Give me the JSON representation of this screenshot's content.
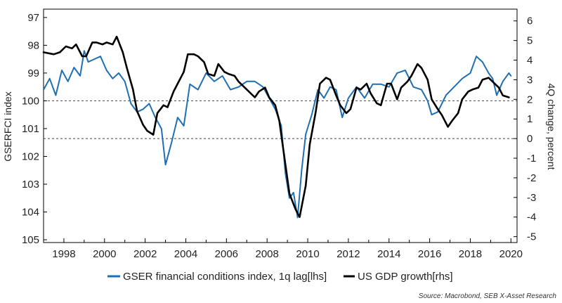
{
  "chart_data": {
    "type": "line",
    "title": "",
    "xlabel": "",
    "ylabel_left": "GSERFCI index",
    "ylabel_right": "4Q change, percent",
    "x_ticks": [
      "1998",
      "2000",
      "2002",
      "2004",
      "2006",
      "2008",
      "2010",
      "2012",
      "2014",
      "2016",
      "2018",
      "2020"
    ],
    "x_range": [
      1997.0,
      2020.3
    ],
    "left_axis": {
      "inverted": true,
      "range": [
        96.7,
        105.1
      ],
      "ticks": [
        "97",
        "98",
        "99",
        "100",
        "101",
        "102",
        "103",
        "104",
        "105"
      ]
    },
    "right_axis": {
      "range": [
        -5.3,
        6.6
      ],
      "ticks": [
        "6",
        "5",
        "4",
        "3",
        "2",
        "1",
        "0",
        "-1",
        "-2",
        "-3",
        "-4",
        "-5"
      ]
    },
    "reference_lines": [
      {
        "axis": "left",
        "value": 100.0
      },
      {
        "axis": "right",
        "value": 0.0
      }
    ],
    "series": [
      {
        "name": "GSER financial conditions index, 1q lag[lhs]",
        "axis": "left",
        "color": "#1f6fb2",
        "x": [
          1997.0,
          1997.3,
          1997.6,
          1997.9,
          1998.2,
          1998.5,
          1998.8,
          1999.0,
          1999.2,
          1999.5,
          1999.8,
          2000.1,
          2000.4,
          2000.7,
          2001.0,
          2001.3,
          2001.6,
          2001.9,
          2002.2,
          2002.5,
          2002.8,
          2003.0,
          2003.3,
          2003.6,
          2003.9,
          2004.2,
          2004.6,
          2005.0,
          2005.4,
          2005.8,
          2006.2,
          2006.6,
          2007.0,
          2007.4,
          2007.8,
          2008.1,
          2008.4,
          2008.7,
          2008.9,
          2009.1,
          2009.3,
          2009.5,
          2009.7,
          2009.9,
          2010.2,
          2010.5,
          2010.8,
          2011.1,
          2011.4,
          2011.7,
          2012.0,
          2012.4,
          2012.8,
          2013.2,
          2013.6,
          2014.0,
          2014.4,
          2014.8,
          2015.2,
          2015.6,
          2015.9,
          2016.1,
          2016.4,
          2016.8,
          2017.2,
          2017.6,
          2018.0,
          2018.3,
          2018.6,
          2018.9,
          2019.1,
          2019.3,
          2019.6,
          2019.9,
          2020.0
        ],
        "values": [
          99.6,
          99.2,
          99.8,
          98.9,
          99.3,
          98.8,
          99.1,
          98.2,
          98.6,
          98.5,
          98.4,
          98.9,
          99.2,
          99.0,
          99.3,
          100.1,
          100.4,
          100.3,
          100.1,
          100.6,
          101.0,
          102.3,
          101.5,
          100.6,
          100.9,
          99.4,
          99.6,
          99.0,
          99.3,
          99.1,
          99.6,
          99.5,
          99.3,
          99.3,
          99.5,
          99.9,
          100.3,
          100.9,
          102.6,
          103.5,
          103.3,
          104.2,
          102.5,
          101.2,
          100.5,
          99.6,
          99.9,
          99.5,
          99.6,
          100.6,
          99.9,
          99.5,
          99.9,
          99.4,
          99.4,
          99.5,
          99.0,
          98.9,
          99.5,
          99.6,
          100.0,
          100.5,
          100.4,
          99.8,
          99.5,
          99.2,
          99.0,
          98.4,
          98.6,
          99.0,
          99.2,
          99.8,
          99.3,
          99.0,
          99.1
        ]
      },
      {
        "name": "US GDP growth[rhs]",
        "axis": "right",
        "color": "#000000",
        "x": [
          1997.0,
          1997.5,
          1997.8,
          1998.1,
          1998.4,
          1998.6,
          1998.9,
          1999.1,
          1999.4,
          1999.6,
          1999.9,
          2000.1,
          2000.4,
          2000.6,
          2000.9,
          2001.1,
          2001.4,
          2001.6,
          2001.9,
          2002.1,
          2002.4,
          2002.6,
          2002.9,
          2003.1,
          2003.4,
          2003.6,
          2003.9,
          2004.1,
          2004.4,
          2004.6,
          2004.9,
          2005.1,
          2005.4,
          2005.6,
          2005.9,
          2006.1,
          2006.4,
          2006.6,
          2006.9,
          2007.1,
          2007.4,
          2007.6,
          2007.9,
          2008.1,
          2008.4,
          2008.6,
          2008.9,
          2009.1,
          2009.4,
          2009.6,
          2009.9,
          2010.1,
          2010.4,
          2010.6,
          2010.9,
          2011.1,
          2011.4,
          2011.6,
          2011.9,
          2012.1,
          2012.4,
          2012.6,
          2012.9,
          2013.1,
          2013.4,
          2013.6,
          2013.9,
          2014.1,
          2014.4,
          2014.6,
          2014.9,
          2015.1,
          2015.4,
          2015.6,
          2015.9,
          2016.1,
          2016.4,
          2016.6,
          2016.9,
          2017.1,
          2017.4,
          2017.6,
          2017.9,
          2018.1,
          2018.4,
          2018.6,
          2018.9,
          2019.1,
          2019.4,
          2019.6,
          2019.9
        ],
        "values": [
          4.4,
          4.3,
          4.4,
          4.7,
          4.6,
          4.8,
          4.2,
          4.2,
          4.9,
          4.9,
          4.8,
          4.9,
          4.8,
          5.2,
          4.4,
          3.6,
          2.5,
          1.4,
          0.7,
          0.4,
          0.2,
          1.3,
          1.7,
          1.6,
          2.4,
          2.8,
          3.4,
          4.3,
          4.3,
          4.2,
          3.9,
          3.3,
          3.2,
          3.8,
          3.4,
          3.3,
          3.2,
          2.9,
          2.6,
          2.4,
          2.1,
          2.4,
          2.6,
          2.1,
          1.7,
          0.9,
          -1.3,
          -2.8,
          -3.6,
          -4.0,
          -2.4,
          -0.3,
          1.4,
          2.8,
          3.1,
          3.0,
          2.2,
          1.7,
          1.3,
          1.5,
          2.6,
          2.5,
          2.8,
          2.3,
          1.8,
          1.7,
          2.8,
          2.8,
          2.0,
          2.6,
          2.9,
          3.2,
          3.8,
          3.6,
          3.0,
          2.0,
          1.5,
          1.2,
          0.6,
          0.9,
          1.3,
          2.0,
          2.4,
          2.5,
          2.6,
          3.0,
          3.1,
          2.9,
          2.6,
          2.2,
          2.1
        ]
      }
    ],
    "source": "Source: Macrobond, SEB X-Asset Research"
  }
}
